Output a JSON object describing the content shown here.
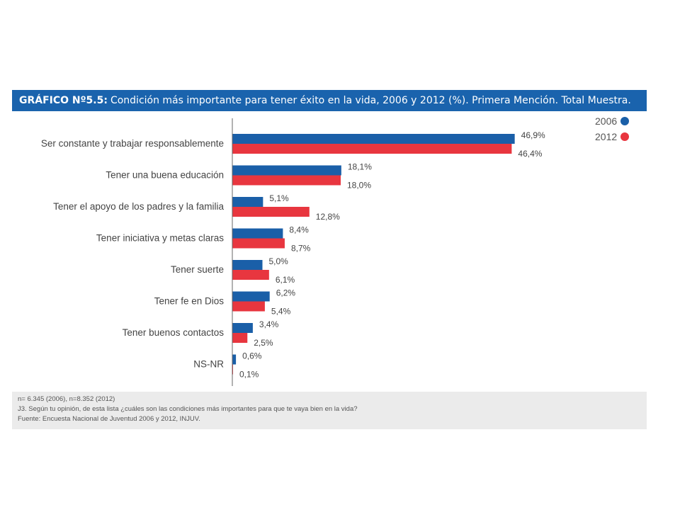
{
  "header": {
    "title_prefix": "GRÁFICO Nº5.5:",
    "title_text": "Condición más importante para tener éxito en la vida, 2006 y 2012 (%). Primera Mención. Total Muestra."
  },
  "legend": {
    "items": [
      {
        "label": "2006",
        "color": "#1a5fa8"
      },
      {
        "label": "2012",
        "color": "#e8363f"
      }
    ]
  },
  "chart_data": {
    "type": "bar",
    "orientation": "horizontal",
    "categories": [
      "Ser constante y trabajar responsablemente",
      "Tener una buena educación",
      "Tener el apoyo de los padres y la familia",
      "Tener iniciativa y metas claras",
      "Tener suerte",
      "Tener fe en Dios",
      "Tener buenos contactos",
      "NS-NR"
    ],
    "series": [
      {
        "name": "2006",
        "color": "#1a5fa8",
        "values": [
          46.9,
          18.1,
          5.1,
          8.4,
          5.0,
          6.2,
          3.4,
          0.6
        ],
        "labels": [
          "46,9%",
          "18,1%",
          "5,1%",
          "8,4%",
          "5,0%",
          "6,2%",
          "3,4%",
          "0,6%"
        ]
      },
      {
        "name": "2012",
        "color": "#e8363f",
        "values": [
          46.4,
          18.0,
          12.8,
          8.7,
          6.1,
          5.4,
          2.5,
          0.1
        ],
        "labels": [
          "46,4%",
          "18,0%",
          "12,8%",
          "8,7%",
          "6,1%",
          "5,4%",
          "2,5%",
          "0,1%"
        ]
      }
    ],
    "xlim": [
      0,
      50
    ],
    "grid": false,
    "legend_position": "top-right"
  },
  "notes": {
    "lines": [
      "n= 6.345 (2006), n=8.352 (2012)",
      "J3. Según tu opinión, de esta lista ¿cuáles son las condiciones más importantes para que te vaya bien en la vida?",
      "Fuente: Encuesta Nacional de Juventud  2006 y 2012, INJUV."
    ]
  }
}
